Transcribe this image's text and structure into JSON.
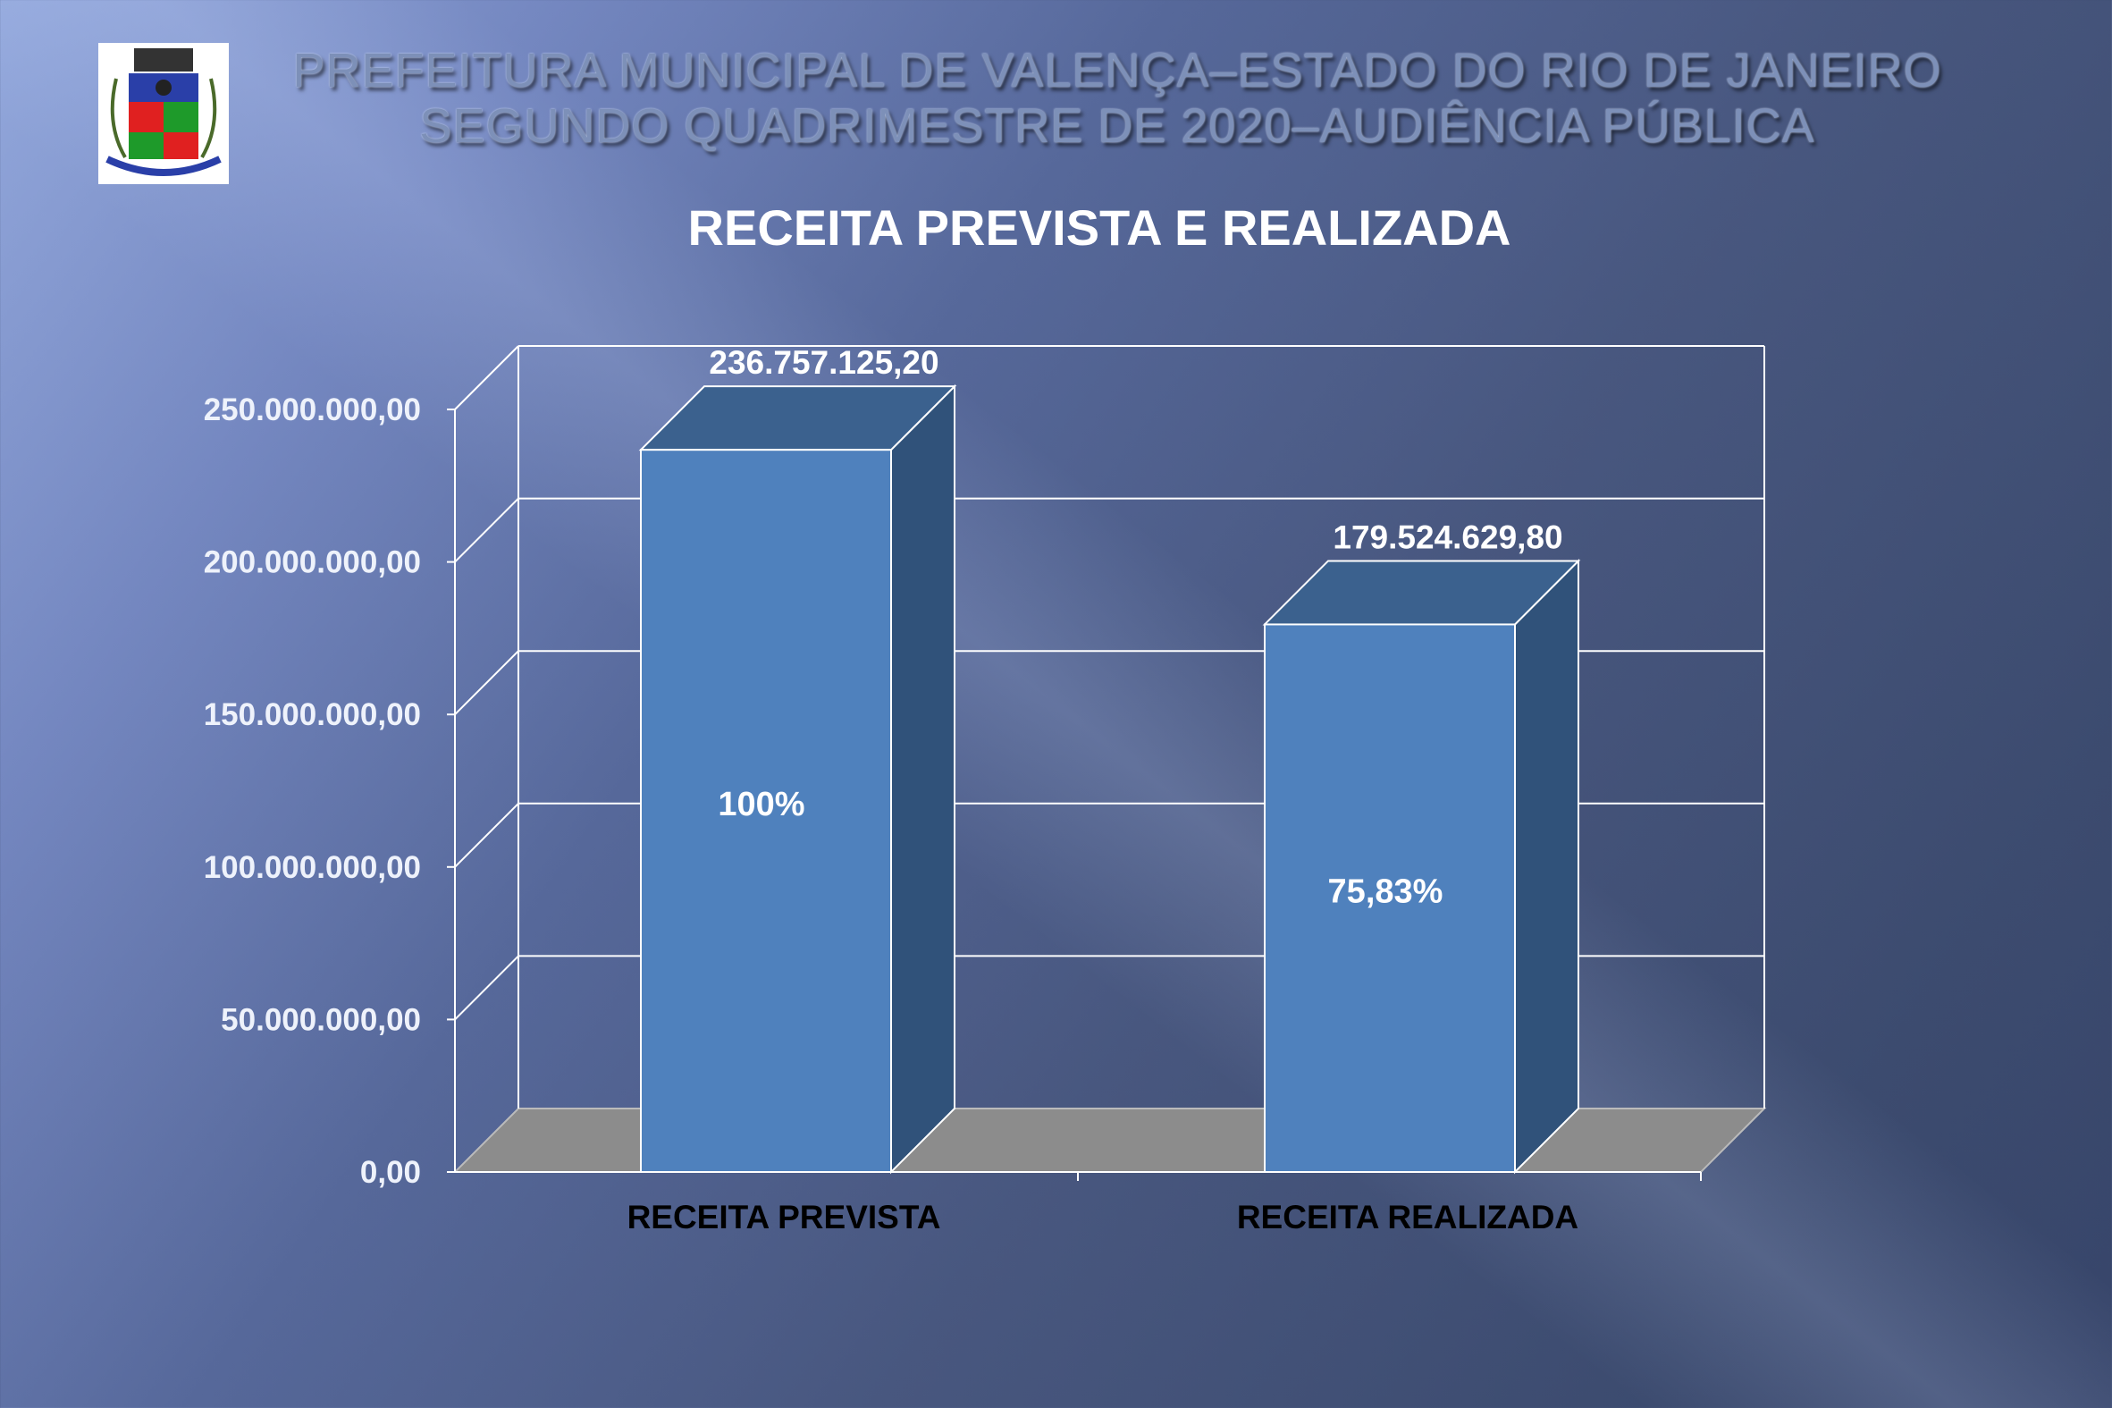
{
  "header": {
    "line1": "PREFEITURA MUNICIPAL DE VALENÇA–ESTADO DO RIO DE JANEIRO",
    "line2": "SEGUNDO QUADRIMESTRE DE 2020–AUDIÊNCIA PÚBLICA"
  },
  "chart_data": {
    "type": "bar",
    "title": "RECEITA PREVISTA E REALIZADA",
    "categories": [
      "RECEITA PREVISTA",
      "RECEITA REALIZADA"
    ],
    "values": [
      236757125.2,
      179524629.8
    ],
    "value_labels": [
      "236.757.125,20",
      "179.524.629,80"
    ],
    "percent_labels": [
      "100%",
      "75,83%"
    ],
    "yticks": [
      0,
      50000000,
      100000000,
      150000000,
      200000000,
      250000000
    ],
    "ytick_labels": [
      "0,00",
      "50.000.000,00",
      "100.000.000,00",
      "150.000.000,00",
      "200.000.000,00",
      "250.000.000,00"
    ],
    "ylim": [
      0,
      250000000
    ],
    "grid": true,
    "style": "3d-column",
    "colors": {
      "front": "#4f81bd",
      "top": "#3b618e",
      "side": "#30527a",
      "floor": "#8c8c8c"
    }
  }
}
